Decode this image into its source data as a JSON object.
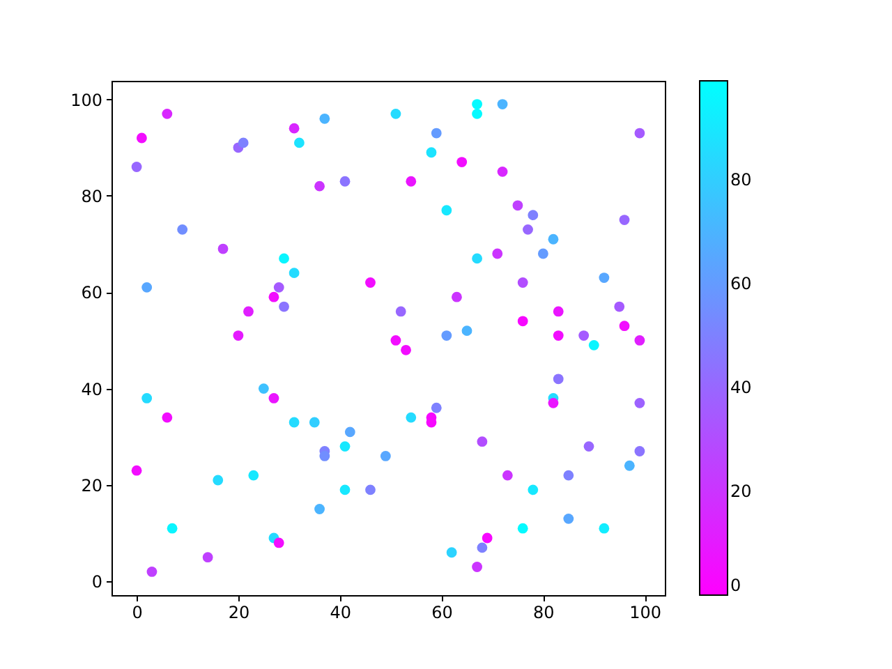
{
  "chart_data": {
    "type": "scatter",
    "marker": "circle",
    "grid": false,
    "x": [
      0,
      1,
      6,
      9,
      2,
      17,
      20,
      21,
      31,
      32,
      37,
      36,
      41,
      29,
      31,
      28,
      29,
      27,
      22,
      20,
      46,
      51,
      59,
      58,
      54,
      64,
      67,
      67,
      72,
      61,
      72,
      99,
      75,
      78,
      77,
      67,
      71,
      80,
      82,
      76,
      63,
      52,
      61,
      65,
      51,
      53,
      76,
      83,
      83,
      88,
      90,
      92,
      95,
      96,
      96,
      99,
      83,
      82,
      82,
      99,
      59,
      54,
      58,
      58,
      68,
      73,
      78,
      85,
      89,
      99,
      97,
      76,
      85,
      92,
      62,
      69,
      68,
      67,
      2,
      6,
      0,
      7,
      3,
      14,
      16,
      23,
      25,
      27,
      31,
      35,
      37,
      37,
      42,
      41,
      41,
      36,
      46,
      49,
      27,
      28
    ],
    "values": [
      86,
      92,
      97,
      73,
      61,
      69,
      90,
      91,
      94,
      91,
      96,
      82,
      83,
      67,
      64,
      61,
      57,
      59,
      56,
      51,
      62,
      97,
      93,
      89,
      83,
      87,
      99,
      97,
      99,
      77,
      85,
      93,
      78,
      76,
      73,
      67,
      68,
      68,
      71,
      62,
      59,
      56,
      51,
      52,
      50,
      48,
      54,
      56,
      51,
      51,
      49,
      63,
      57,
      75,
      53,
      50,
      42,
      38,
      37,
      37,
      36,
      34,
      34,
      33,
      29,
      22,
      19,
      22,
      28,
      27,
      24,
      11,
      13,
      11,
      6,
      9,
      7,
      3,
      38,
      34,
      23,
      11,
      2,
      5,
      21,
      22,
      40,
      38,
      33,
      33,
      27,
      26,
      31,
      28,
      19,
      15,
      19,
      26,
      9,
      8
    ],
    "cvalues": [
      40,
      5,
      15,
      55,
      65,
      25,
      40,
      50,
      15,
      88,
      70,
      20,
      45,
      95,
      85,
      35,
      45,
      5,
      12,
      10,
      5,
      85,
      60,
      88,
      8,
      5,
      97,
      97,
      70,
      90,
      15,
      35,
      25,
      50,
      40,
      85,
      20,
      60,
      70,
      30,
      20,
      40,
      60,
      70,
      5,
      5,
      3,
      8,
      5,
      35,
      95,
      65,
      35,
      40,
      5,
      12,
      45,
      85,
      8,
      38,
      50,
      85,
      3,
      3,
      30,
      20,
      90,
      50,
      40,
      45,
      70,
      97,
      65,
      92,
      82,
      3,
      50,
      20,
      85,
      5,
      5,
      95,
      25,
      25,
      85,
      90,
      75,
      8,
      85,
      80,
      50,
      55,
      65,
      90,
      90,
      70,
      50,
      65,
      85,
      5
    ],
    "xlim": [
      -4.95,
      103.95
    ],
    "ylim": [
      -2.85,
      103.85
    ],
    "xticks": [
      0,
      20,
      40,
      60,
      80,
      100
    ],
    "yticks": [
      0,
      20,
      40,
      60,
      80,
      100
    ],
    "clim": [
      0,
      99
    ],
    "cticks": [
      0,
      20,
      40,
      60,
      80
    ]
  }
}
